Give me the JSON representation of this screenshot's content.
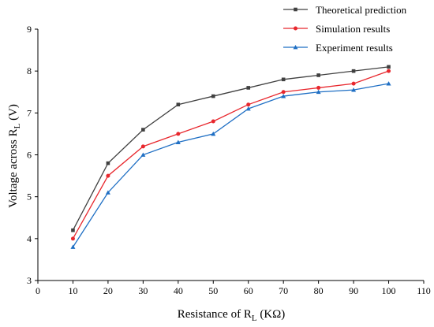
{
  "chart_data": {
    "type": "line",
    "title": "",
    "xlabel": "Resistance of R",
    "xlabel_sub": "L",
    "xlabel_suffix": " (KΩ)",
    "ylabel": "Voltage across R",
    "ylabel_sub": "L",
    "ylabel_suffix": " (V)",
    "xlim": [
      0,
      110
    ],
    "ylim": [
      3,
      9
    ],
    "xticks": [
      0,
      10,
      20,
      30,
      40,
      50,
      60,
      70,
      80,
      90,
      100,
      110
    ],
    "yticks": [
      3,
      4,
      5,
      6,
      7,
      8,
      9
    ],
    "grid": false,
    "legend_position": "top-right",
    "x": [
      10,
      20,
      30,
      40,
      50,
      60,
      70,
      80,
      90,
      100
    ],
    "series": [
      {
        "name": "Theoretical prediction",
        "color": "#404040",
        "marker": "square",
        "values": [
          4.2,
          5.8,
          6.6,
          7.2,
          7.4,
          7.6,
          7.8,
          7.9,
          8.0,
          8.1
        ]
      },
      {
        "name": "Simulation results",
        "color": "#e8272d",
        "marker": "circle",
        "values": [
          4.0,
          5.5,
          6.2,
          6.5,
          6.8,
          7.2,
          7.5,
          7.6,
          7.7,
          8.0
        ]
      },
      {
        "name": "Experiment results",
        "color": "#1f6fc4",
        "marker": "triangle",
        "values": [
          3.8,
          5.1,
          6.0,
          6.3,
          6.5,
          7.1,
          7.4,
          7.5,
          7.55,
          7.7
        ]
      }
    ]
  }
}
